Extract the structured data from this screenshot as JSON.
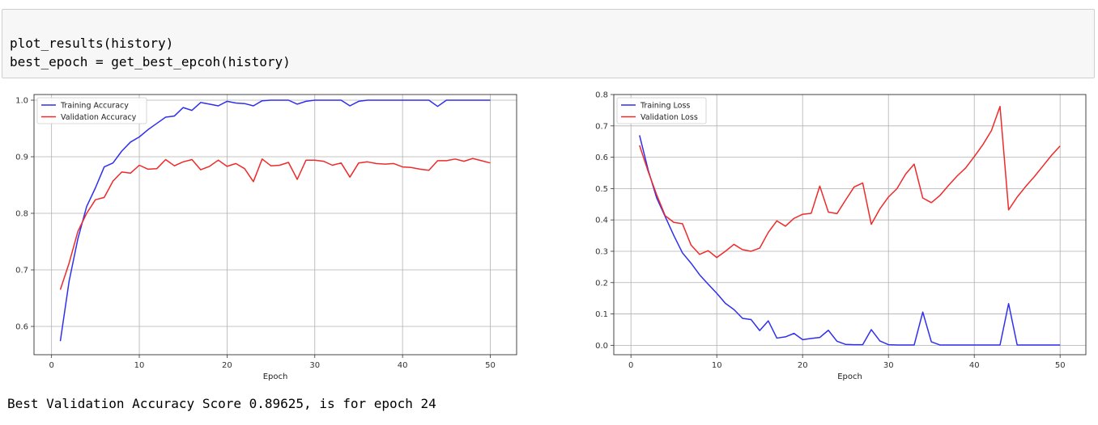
{
  "code": {
    "lines": [
      "plot_results(history)",
      "best_epoch = get_best_epcoh(history)"
    ]
  },
  "output": {
    "text": "Best Validation Accuracy Score 0.89625, is for epoch 24"
  },
  "colors": {
    "training": "#2f2ff0",
    "validation": "#ee2a2a",
    "grid": "#b0b0b0"
  },
  "chart_data": [
    {
      "type": "line",
      "title": "",
      "xlabel": "Epoch",
      "ylabel": "",
      "xlim": [
        -2,
        53
      ],
      "ylim": [
        0.55,
        1.01
      ],
      "xticks": [
        0,
        10,
        20,
        30,
        40,
        50
      ],
      "yticks": [
        0.6,
        0.7,
        0.8,
        0.9,
        1.0
      ],
      "ytick_labels": [
        "0.6",
        "0.7",
        "0.8",
        "0.9",
        "1.0"
      ],
      "grid": true,
      "legend": "top-left",
      "x": [
        1,
        2,
        3,
        4,
        5,
        6,
        7,
        8,
        9,
        10,
        11,
        12,
        13,
        14,
        15,
        16,
        17,
        18,
        19,
        20,
        21,
        22,
        23,
        24,
        25,
        26,
        27,
        28,
        29,
        30,
        31,
        32,
        33,
        34,
        35,
        36,
        37,
        38,
        39,
        40,
        41,
        42,
        43,
        44,
        45,
        46,
        47,
        48,
        49,
        50
      ],
      "series": [
        {
          "name": "Training Accuracy",
          "color": "#2f2ff0",
          "values": [
            0.574,
            0.68,
            0.755,
            0.812,
            0.845,
            0.882,
            0.889,
            0.91,
            0.926,
            0.935,
            0.948,
            0.959,
            0.97,
            0.972,
            0.987,
            0.982,
            0.996,
            0.993,
            0.99,
            0.998,
            0.995,
            0.994,
            0.99,
            0.999,
            1.0,
            1.0,
            1.0,
            0.993,
            0.998,
            1.0,
            1.0,
            1.0,
            1.0,
            0.99,
            0.998,
            1.0,
            1.0,
            1.0,
            1.0,
            1.0,
            1.0,
            1.0,
            1.0,
            0.989,
            1.0,
            1.0,
            1.0,
            1.0,
            1.0,
            1.0
          ]
        },
        {
          "name": "Validation Accuracy",
          "color": "#ee2a2a",
          "values": [
            0.665,
            0.712,
            0.768,
            0.8,
            0.824,
            0.828,
            0.857,
            0.873,
            0.871,
            0.885,
            0.878,
            0.879,
            0.895,
            0.884,
            0.891,
            0.895,
            0.877,
            0.883,
            0.894,
            0.883,
            0.888,
            0.879,
            0.856,
            0.896,
            0.884,
            0.885,
            0.89,
            0.86,
            0.894,
            0.894,
            0.892,
            0.885,
            0.889,
            0.864,
            0.889,
            0.891,
            0.888,
            0.887,
            0.888,
            0.882,
            0.881,
            0.878,
            0.876,
            0.893,
            0.893,
            0.896,
            0.892,
            0.897,
            0.893,
            0.889
          ]
        }
      ]
    },
    {
      "type": "line",
      "title": "",
      "xlabel": "Epoch",
      "ylabel": "",
      "xlim": [
        -2,
        53
      ],
      "ylim": [
        -0.03,
        0.8
      ],
      "xticks": [
        0,
        10,
        20,
        30,
        40,
        50
      ],
      "yticks": [
        0.0,
        0.1,
        0.2,
        0.3,
        0.4,
        0.5,
        0.6,
        0.7,
        0.8
      ],
      "ytick_labels": [
        "0.0",
        "0.1",
        "0.2",
        "0.3",
        "0.4",
        "0.5",
        "0.6",
        "0.7",
        "0.8"
      ],
      "grid": true,
      "legend": "top-left",
      "x": [
        1,
        2,
        3,
        4,
        5,
        6,
        7,
        8,
        9,
        10,
        11,
        12,
        13,
        14,
        15,
        16,
        17,
        18,
        19,
        20,
        21,
        22,
        23,
        24,
        25,
        26,
        27,
        28,
        29,
        30,
        31,
        32,
        33,
        34,
        35,
        36,
        37,
        38,
        39,
        40,
        41,
        42,
        43,
        44,
        45,
        46,
        47,
        48,
        49,
        50
      ],
      "series": [
        {
          "name": "Training Loss",
          "color": "#2f2ff0",
          "values": [
            0.67,
            0.56,
            0.47,
            0.41,
            0.35,
            0.295,
            0.262,
            0.225,
            0.195,
            0.166,
            0.134,
            0.114,
            0.086,
            0.082,
            0.047,
            0.078,
            0.023,
            0.027,
            0.038,
            0.018,
            0.022,
            0.025,
            0.048,
            0.013,
            0.003,
            0.002,
            0.002,
            0.05,
            0.014,
            0.002,
            0.001,
            0.001,
            0.001,
            0.106,
            0.011,
            0.001,
            0.001,
            0.001,
            0.001,
            0.001,
            0.001,
            0.001,
            0.001,
            0.133,
            0.001,
            0.001,
            0.001,
            0.001,
            0.001,
            0.001
          ]
        },
        {
          "name": "Validation Loss",
          "color": "#ee2a2a",
          "values": [
            0.638,
            0.555,
            0.48,
            0.413,
            0.392,
            0.388,
            0.32,
            0.29,
            0.302,
            0.28,
            0.3,
            0.322,
            0.305,
            0.3,
            0.31,
            0.36,
            0.397,
            0.38,
            0.405,
            0.418,
            0.421,
            0.508,
            0.425,
            0.42,
            0.463,
            0.505,
            0.518,
            0.386,
            0.435,
            0.473,
            0.5,
            0.546,
            0.578,
            0.47,
            0.455,
            0.478,
            0.51,
            0.54,
            0.566,
            0.602,
            0.64,
            0.685,
            0.762,
            0.432,
            0.473,
            0.507,
            0.538,
            0.572,
            0.606,
            0.636
          ]
        }
      ]
    }
  ]
}
